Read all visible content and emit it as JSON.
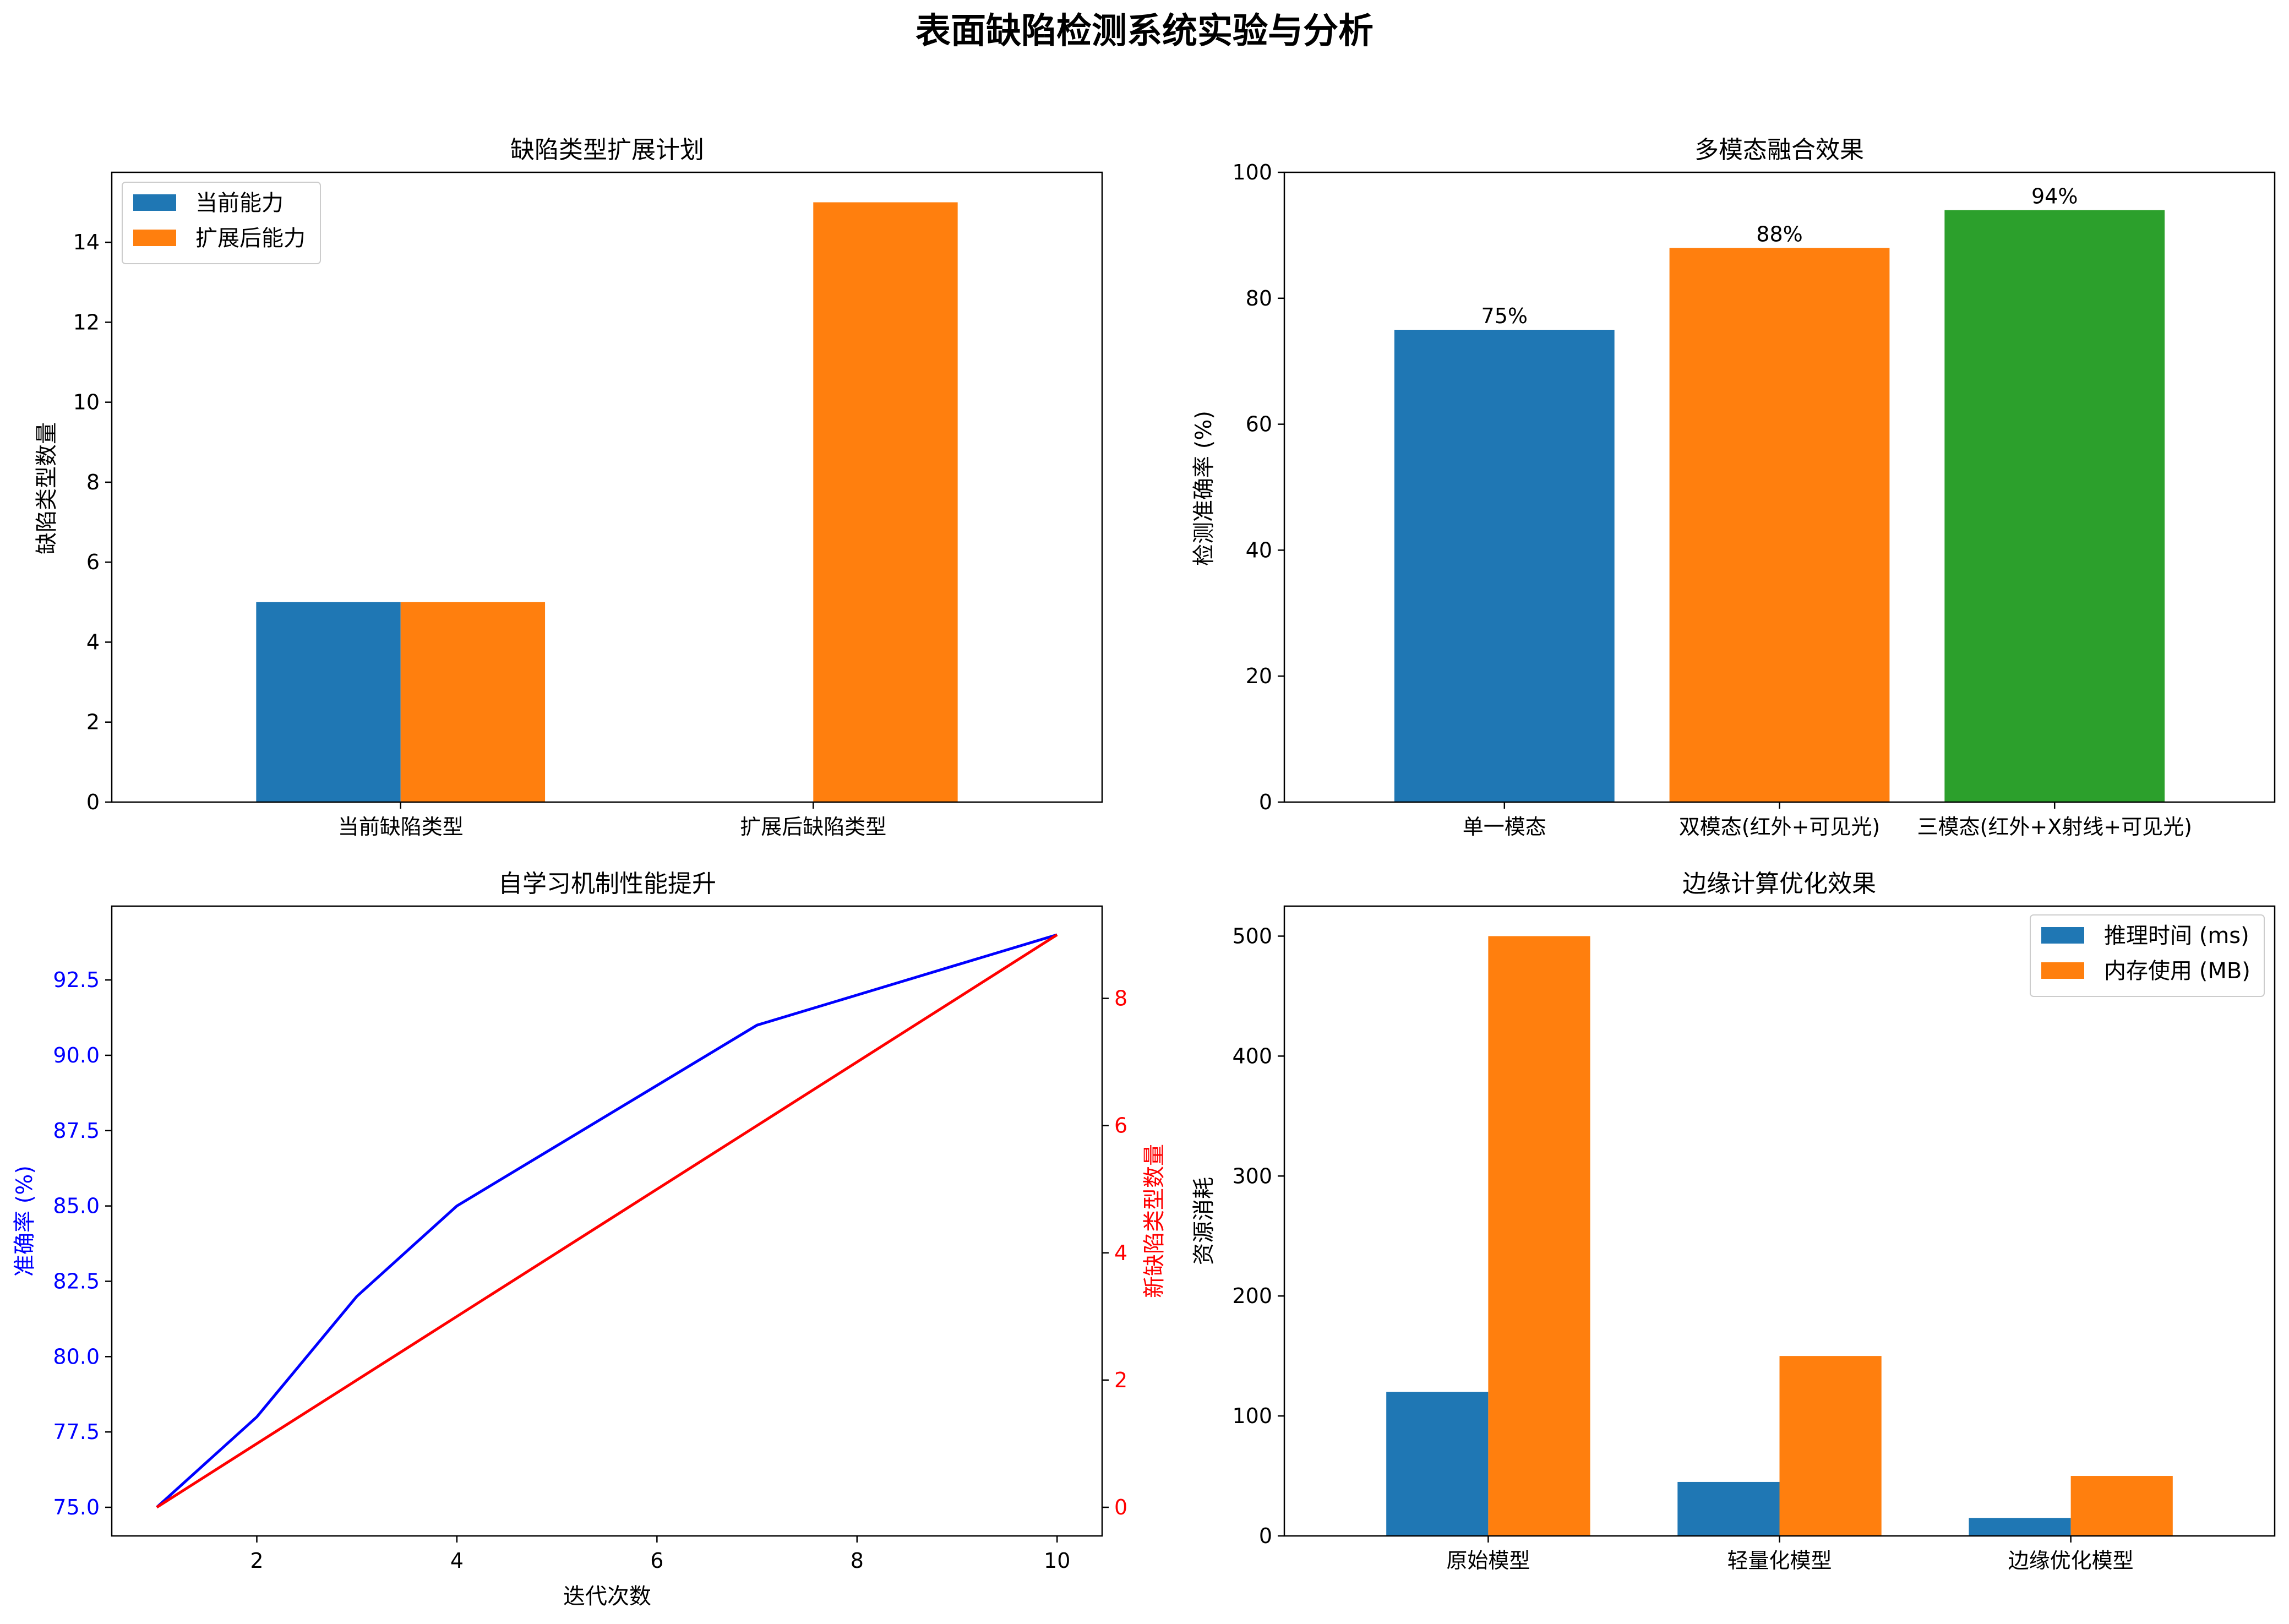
{
  "figure_title": "表面缺陷检测系统实验与分析",
  "colors": {
    "blue": "#1f77b4",
    "orange": "#ff7f0e",
    "green": "#2ca02c",
    "line_blue": "#0000ff",
    "line_red": "#ff0000"
  },
  "chart_data": [
    {
      "id": "expansion",
      "type": "bar",
      "title": "缺陷类型扩展计划",
      "xlabel": "",
      "ylabel": "缺陷类型数量",
      "categories": [
        "当前缺陷类型",
        "扩展后缺陷类型"
      ],
      "series": [
        {
          "name": "当前能力",
          "values": [
            5,
            0
          ],
          "color": "#1f77b4"
        },
        {
          "name": "扩展后能力",
          "values": [
            5,
            15
          ],
          "color": "#ff7f0e"
        }
      ],
      "ylim": [
        0,
        15.75
      ],
      "yticks": [
        0,
        2,
        4,
        6,
        8,
        10,
        12,
        14
      ],
      "legend": "top-left",
      "grid": false
    },
    {
      "id": "multimodal",
      "type": "bar",
      "title": "多模态融合效果",
      "xlabel": "",
      "ylabel": "检测准确率 (%)",
      "categories": [
        "单一模态",
        "双模态(红外+可见光)",
        "三模态(红外+X射线+可见光)"
      ],
      "values": [
        75,
        88,
        94
      ],
      "value_labels": [
        "75%",
        "88%",
        "94%"
      ],
      "colors": [
        "#1f77b4",
        "#ff7f0e",
        "#2ca02c"
      ],
      "ylim": [
        0,
        100
      ],
      "yticks": [
        0,
        20,
        40,
        60,
        80,
        100
      ],
      "grid": false
    },
    {
      "id": "selflearning",
      "type": "line",
      "title": "自学习机制性能提升",
      "xlabel": "迭代次数",
      "ylabel": "准确率 (%)",
      "ylabel_right": "新缺陷类型数量",
      "x": [
        1,
        2,
        3,
        4,
        5,
        6,
        7,
        8,
        9,
        10
      ],
      "series": [
        {
          "name": "准确率 (%)",
          "axis": "left",
          "values": [
            75,
            78,
            82,
            85,
            87,
            89,
            91,
            92,
            93,
            94
          ],
          "color": "#0000ff"
        },
        {
          "name": "新缺陷类型数量",
          "axis": "right",
          "values": [
            0,
            1,
            2,
            3,
            4,
            5,
            6,
            7,
            8,
            9
          ],
          "color": "#ff0000"
        }
      ],
      "xlim": [
        0.55,
        10.45
      ],
      "ylim_left": [
        74.05,
        94.95
      ],
      "ylim_right": [
        -0.45,
        9.45
      ],
      "xticks": [
        2,
        4,
        6,
        8,
        10
      ],
      "yticks_left": [
        "75.0",
        "77.5",
        "80.0",
        "82.5",
        "85.0",
        "87.5",
        "90.0",
        "92.5"
      ],
      "yticks_right": [
        0,
        2,
        4,
        6,
        8
      ],
      "grid": false
    },
    {
      "id": "edge",
      "type": "bar",
      "title": "边缘计算优化效果",
      "xlabel": "",
      "ylabel": "资源消耗",
      "categories": [
        "原始模型",
        "轻量化模型",
        "边缘优化模型"
      ],
      "series": [
        {
          "name": "推理时间 (ms)",
          "values": [
            120,
            45,
            15
          ],
          "color": "#1f77b4"
        },
        {
          "name": "内存使用 (MB)",
          "values": [
            500,
            150,
            50
          ],
          "color": "#ff7f0e"
        }
      ],
      "ylim": [
        0,
        525
      ],
      "yticks": [
        0,
        100,
        200,
        300,
        400,
        500
      ],
      "legend": "top-right",
      "grid": false
    }
  ]
}
